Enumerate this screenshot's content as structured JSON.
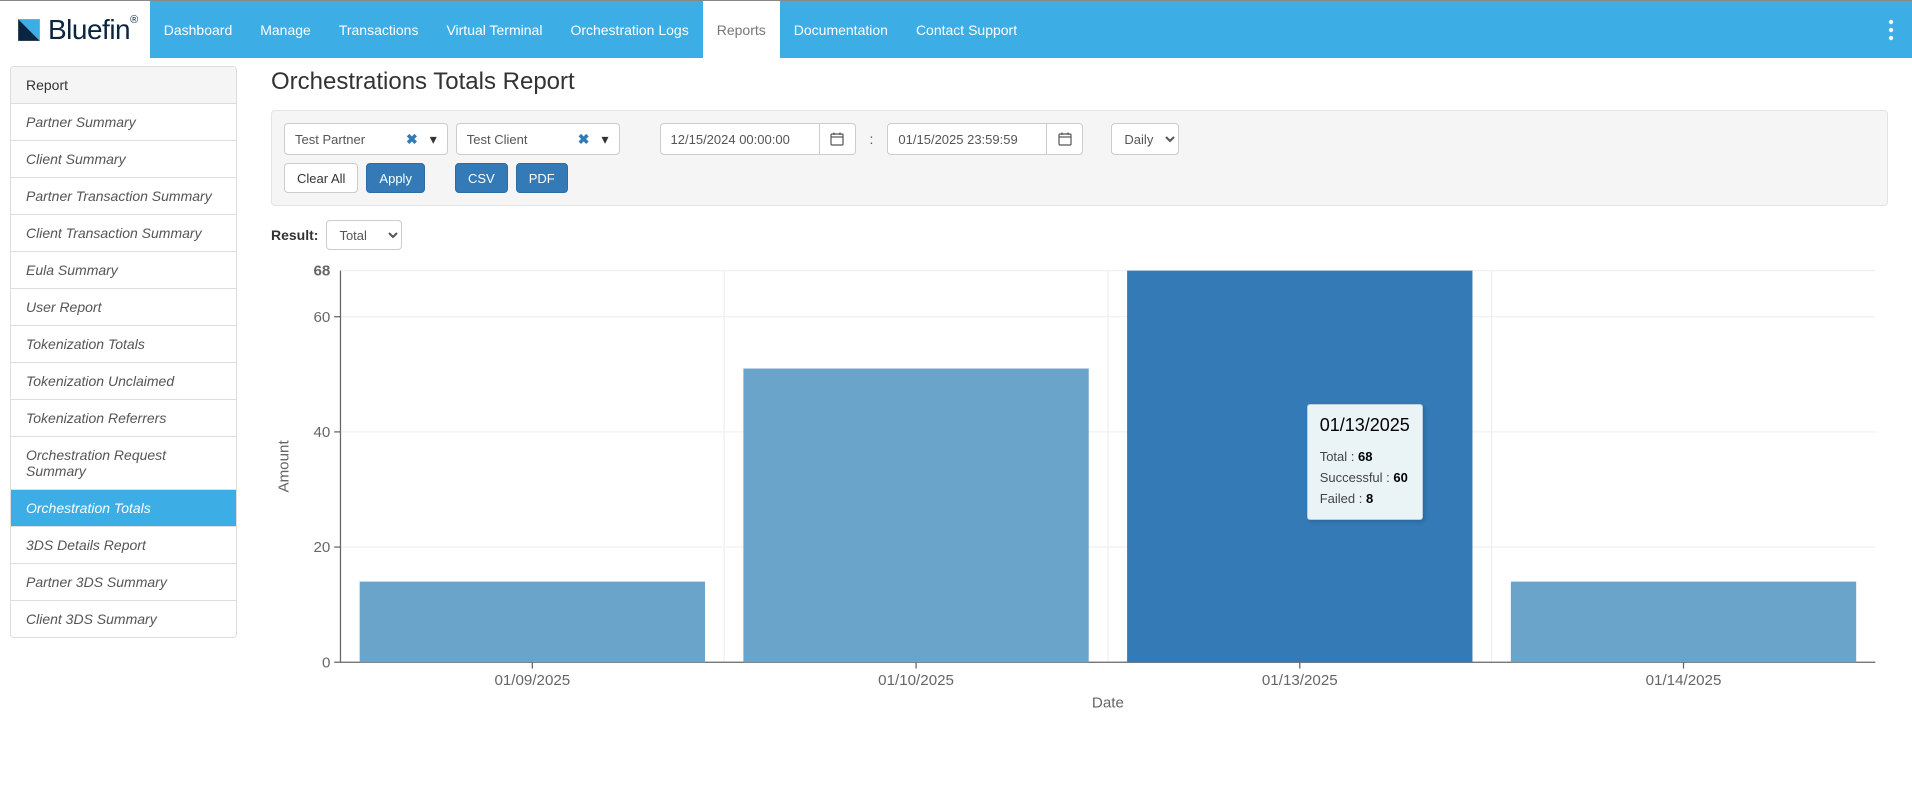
{
  "brand": {
    "name": "Bluefin",
    "registered": "®"
  },
  "nav": {
    "items": [
      {
        "label": "Dashboard",
        "active": false
      },
      {
        "label": "Manage",
        "active": false
      },
      {
        "label": "Transactions",
        "active": false
      },
      {
        "label": "Virtual Terminal",
        "active": false
      },
      {
        "label": "Orchestration Logs",
        "active": false
      },
      {
        "label": "Reports",
        "active": true
      },
      {
        "label": "Documentation",
        "active": false
      },
      {
        "label": "Contact Support",
        "active": false
      }
    ]
  },
  "sidebar": {
    "heading": "Report",
    "items": [
      {
        "label": "Partner Summary",
        "active": false
      },
      {
        "label": "Client Summary",
        "active": false
      },
      {
        "label": "Partner Transaction Summary",
        "active": false
      },
      {
        "label": "Client Transaction Summary",
        "active": false
      },
      {
        "label": "Eula Summary",
        "active": false
      },
      {
        "label": "User Report",
        "active": false
      },
      {
        "label": "Tokenization Totals",
        "active": false
      },
      {
        "label": "Tokenization Unclaimed",
        "active": false
      },
      {
        "label": "Tokenization Referrers",
        "active": false
      },
      {
        "label": "Orchestration Request Summary",
        "active": false
      },
      {
        "label": "Orchestration Totals",
        "active": true
      },
      {
        "label": "3DS Details Report",
        "active": false
      },
      {
        "label": "Partner 3DS Summary",
        "active": false
      },
      {
        "label": "Client 3DS Summary",
        "active": false
      }
    ]
  },
  "page": {
    "title": "Orchestrations Totals Report"
  },
  "filters": {
    "partner": "Test Partner",
    "client": "Test Client",
    "date_from": "12/15/2024 00:00:00",
    "date_to": "01/15/2025 23:59:59",
    "date_sep": ":",
    "frequency": "Daily",
    "clear_all": "Clear All",
    "apply": "Apply",
    "csv": "CSV",
    "pdf": "PDF"
  },
  "result": {
    "label": "Result:",
    "value": "Total"
  },
  "chart": {
    "type": "bar",
    "x_label": "Date",
    "y_label": "Amount",
    "y_max": 68,
    "y_ticks": [
      0,
      20,
      40,
      60
    ],
    "categories": [
      "01/09/2025",
      "01/10/2025",
      "01/13/2025",
      "01/14/2025"
    ],
    "values": [
      14,
      51,
      68,
      14
    ],
    "highlight_index": 2,
    "bar_color": "#6ba4cb",
    "highlight_color": "#337ab7",
    "grid_color": "#f0f0f0",
    "axis_color": "#666666",
    "background": "#ffffff",
    "bar_width_ratio": 0.9
  },
  "tooltip": {
    "title": "01/13/2025",
    "rows": [
      {
        "label": "Total : ",
        "value": "68"
      },
      {
        "label": "Successful : ",
        "value": "60"
      },
      {
        "label": "Failed : ",
        "value": "8"
      }
    ]
  },
  "colors": {
    "navbar": "#3caee5",
    "primary_btn": "#337ab7",
    "well_bg": "#f5f5f5",
    "tooltip_bg": "#eaf4f7"
  }
}
